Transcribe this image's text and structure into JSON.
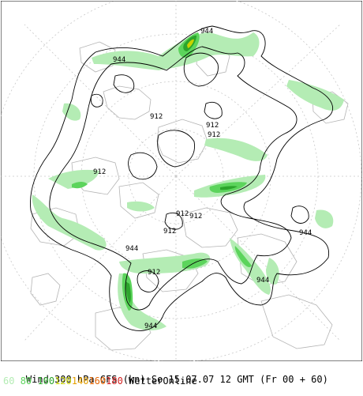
{
  "map": {
    "parameter": "Wind 300 hPa",
    "model": "GFS",
    "unit": "(kn)",
    "date_line": "Wind 300 hPa GFS (kn) So 15.07.07 12 GMT (Fr 00 + 60)",
    "valid_weekday": "So",
    "valid_date": "15.07.07",
    "valid_time": "12 GMT",
    "run_info": "(Fr 00 + 60)",
    "source": "WetterOnline",
    "projection": "polar stereographic, North Pole centered",
    "contour_labels": [
      "944",
      "944",
      "912",
      "912",
      "912",
      "912",
      "912",
      "912",
      "912",
      "944",
      "944",
      "944",
      "912",
      "944"
    ],
    "legend": [
      {
        "value": "60",
        "color": "#b4ecb4"
      },
      {
        "value": "80",
        "color": "#5cd45c"
      },
      {
        "value": "100",
        "color": "#2ca52c"
      },
      {
        "value": "120",
        "color": "#c8d200"
      },
      {
        "value": "140",
        "color": "#e6a000"
      },
      {
        "value": "160",
        "color": "#e66400"
      },
      {
        "value": "180",
        "color": "#d21e1e"
      }
    ],
    "colors": {
      "background": "#ffffff",
      "coastline": "#b4b4b4",
      "graticule": "#c8c8c8",
      "contour": "#000000",
      "wind_60": "#b4ecb4",
      "wind_80": "#5cd45c",
      "wind_100": "#2ca52c",
      "wind_120": "#c8d200"
    }
  }
}
